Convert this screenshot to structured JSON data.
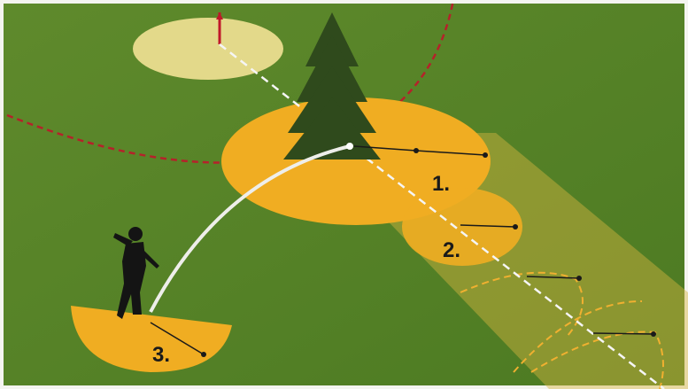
{
  "labels": [
    "1.",
    "2.",
    "3."
  ]
}
